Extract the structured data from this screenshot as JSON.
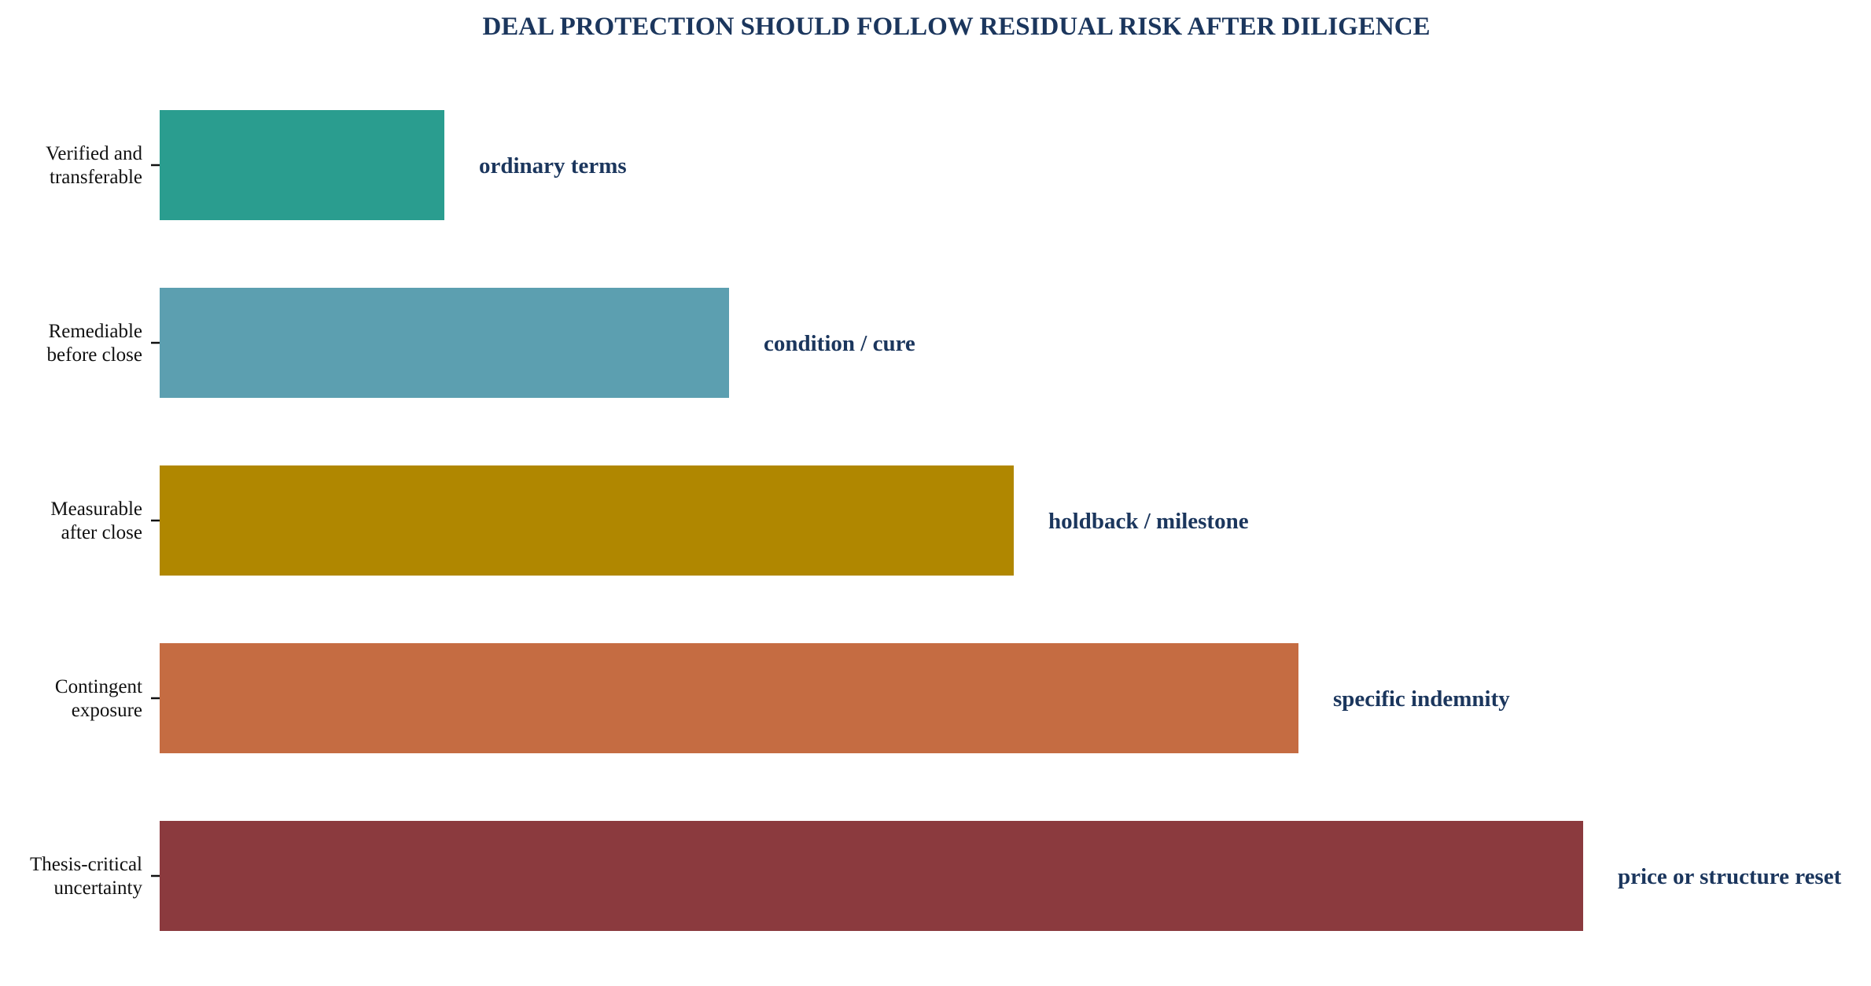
{
  "chart_data": {
    "type": "bar",
    "orientation": "horizontal",
    "title": "DEAL PROTECTION SHOULD FOLLOW RESIDUAL RISK AFTER DILIGENCE",
    "xlabel": "",
    "ylabel": "",
    "grid": false,
    "legend": "none",
    "xlim": [
      0,
      5.8
    ],
    "categories": [
      [
        "Verified and",
        "transferable"
      ],
      [
        "Remediable",
        "before close"
      ],
      [
        "Measurable",
        "after close"
      ],
      [
        "Contingent",
        "exposure"
      ],
      [
        "Thesis-critical",
        "uncertainty"
      ]
    ],
    "values": [
      1,
      2,
      3,
      4,
      5
    ],
    "bar_labels": [
      "ordinary terms",
      "condition / cure",
      "holdback / milestone",
      "specific indemnity",
      "price or structure reset"
    ],
    "colors": [
      "#2a9d8f",
      "#5c9fb0",
      "#b08700",
      "#c56c42",
      "#8b3a3e"
    ],
    "title_color": "#1b365d",
    "bar_label_color": "#1b365d"
  }
}
